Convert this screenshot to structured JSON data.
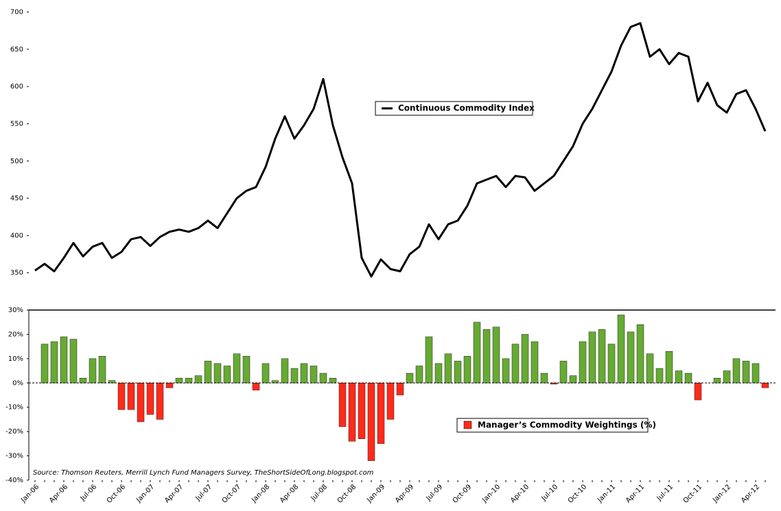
{
  "chart_data": [
    {
      "type": "line",
      "series": [
        {
          "name": "Continuous Commodity Index",
          "color": "#000000",
          "values": [
            353,
            362,
            352,
            370,
            390,
            372,
            385,
            390,
            370,
            378,
            395,
            398,
            386,
            398,
            405,
            408,
            405,
            410,
            420,
            410,
            430,
            450,
            460,
            465,
            492,
            530,
            560,
            530,
            548,
            570,
            610,
            548,
            505,
            470,
            370,
            345,
            368,
            355,
            352,
            375,
            385,
            415,
            395,
            415,
            420,
            440,
            470,
            475,
            480,
            465,
            480,
            478,
            460,
            470,
            480,
            500,
            520,
            550,
            570,
            595,
            620,
            655,
            680,
            685,
            640,
            650,
            630,
            645,
            640,
            580,
            605,
            575,
            565,
            590,
            595,
            570,
            540
          ]
        }
      ],
      "ylim": [
        300,
        700
      ],
      "yticks": [
        350,
        400,
        450,
        500,
        550,
        600,
        650,
        700
      ]
    },
    {
      "type": "bar",
      "categories": [
        "Jan-06",
        null,
        null,
        "Apr-06",
        null,
        null,
        "Jul-06",
        null,
        null,
        "Oct-06",
        null,
        null,
        "Jan-07",
        null,
        null,
        "Apr-07",
        null,
        null,
        "Jul-07",
        null,
        null,
        "Oct-07",
        null,
        null,
        "Jan-08",
        null,
        null,
        "Apr-08",
        null,
        null,
        "Jul-08",
        null,
        null,
        "Oct-08",
        null,
        null,
        "Jan-09",
        null,
        null,
        "Apr-09",
        null,
        null,
        "Jul-09",
        null,
        null,
        "Oct-09",
        null,
        null,
        "Jan-10",
        null,
        null,
        "Apr-10",
        null,
        null,
        "Jul-10",
        null,
        null,
        "Oct-10",
        null,
        null,
        "Jan-11",
        null,
        null,
        "Apr-11",
        null,
        null,
        "Jul-11",
        null,
        null,
        "Oct-11",
        null,
        null,
        "Jan-12",
        null,
        null,
        "Apr-12",
        null
      ],
      "series": [
        {
          "name": "Manager’s Commodity Weightings (%)",
          "color": "#ff2a1a",
          "positive_color": "#66aa33",
          "values": [
            null,
            16,
            17,
            19,
            18,
            2,
            10,
            11,
            1,
            -11,
            -11,
            -16,
            -13,
            -15,
            -2,
            2,
            2,
            3,
            9,
            8,
            7,
            12,
            11,
            -3,
            8,
            1,
            10,
            6,
            8,
            7,
            4,
            2,
            -18,
            -24,
            -23,
            -32,
            -25,
            -15,
            -5,
            4,
            7,
            19,
            8,
            12,
            9,
            11,
            25,
            22,
            23,
            10,
            16,
            20,
            17,
            4,
            -0.5,
            9,
            3,
            17,
            21,
            22,
            16,
            28,
            21,
            24,
            12,
            6,
            13,
            5,
            4,
            -7,
            0,
            2,
            5,
            10,
            9,
            8,
            -2
          ]
        }
      ],
      "ylim": [
        -40,
        30
      ],
      "yticks": [
        {
          "value": -40,
          "label": "-40%"
        },
        {
          "value": -30,
          "label": "-30%"
        },
        {
          "value": -20,
          "label": "-20%"
        },
        {
          "value": -10,
          "label": "-10%"
        },
        {
          "value": 0,
          "label": "0%"
        },
        {
          "value": 10,
          "label": "10%"
        },
        {
          "value": 20,
          "label": "20%"
        },
        {
          "value": 30,
          "label": "30%"
        }
      ],
      "annotation": "Source: Thomson Reuters, Merrill Lynch Fund Managers Survey, TheShortSideOfLong.blogspot.com"
    }
  ]
}
